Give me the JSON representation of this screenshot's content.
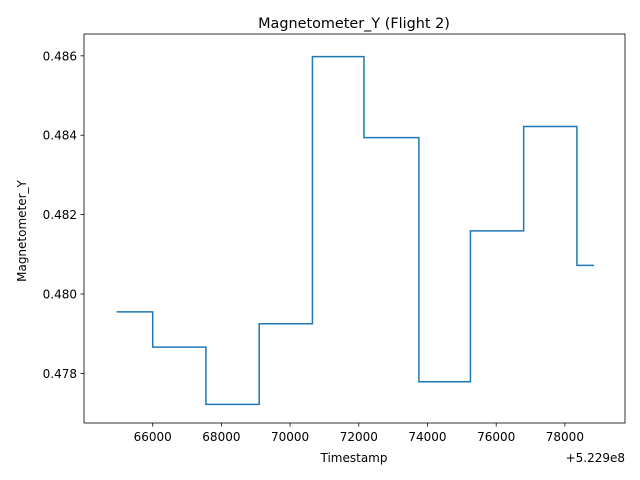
{
  "chart_data": {
    "type": "line",
    "title": "Magnetometer_Y (Flight 2)",
    "xlabel": "Timestamp",
    "ylabel": "Magnetometer_Y",
    "x_offset_label": "+5.229e8",
    "xlim": [
      64000,
      79750
    ],
    "ylim": [
      0.47675,
      0.48655
    ],
    "x_ticks": [
      66000,
      68000,
      70000,
      72000,
      74000,
      76000,
      78000
    ],
    "x_tick_labels": [
      "66000",
      "68000",
      "70000",
      "72000",
      "74000",
      "76000",
      "78000"
    ],
    "y_ticks": [
      0.478,
      0.48,
      0.482,
      0.484,
      0.486
    ],
    "y_tick_labels": [
      "0.478",
      "0.480",
      "0.482",
      "0.484",
      "0.486"
    ],
    "grid": false,
    "line_color": "#1f77b4",
    "series": [
      {
        "step": "post",
        "x": [
          64950,
          66000,
          67550,
          69100,
          70650,
          72150,
          73750,
          75250,
          76800,
          78350,
          78850
        ],
        "values": [
          0.47955,
          0.47866,
          0.47722,
          0.47925,
          0.48598,
          0.48394,
          0.47779,
          0.48159,
          0.48422,
          0.48072,
          0.48072
        ]
      }
    ]
  }
}
